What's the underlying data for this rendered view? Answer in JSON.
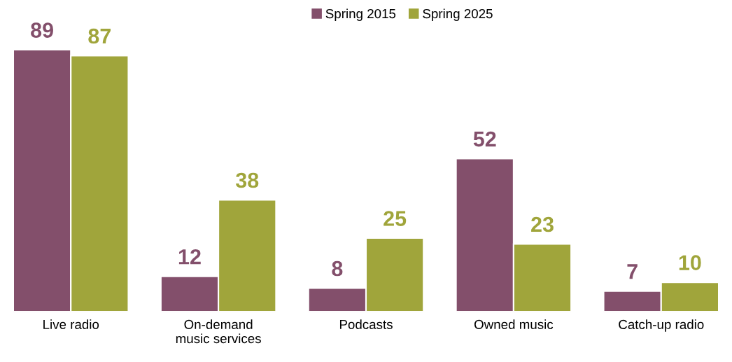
{
  "chart_data": {
    "type": "bar",
    "categories": [
      "Live radio",
      "On-demand\nmusic services",
      "Podcasts",
      "Owned music",
      "Catch-up radio"
    ],
    "series": [
      {
        "name": "Spring 2015",
        "color": "#834f6b",
        "values": [
          89,
          12,
          8,
          52,
          7
        ]
      },
      {
        "name": "Spring 2025",
        "color": "#a0a53b",
        "values": [
          87,
          38,
          25,
          23,
          10
        ]
      }
    ],
    "tick_labels": "x",
    "data_labels": true,
    "legend": "top",
    "grid": false
  }
}
